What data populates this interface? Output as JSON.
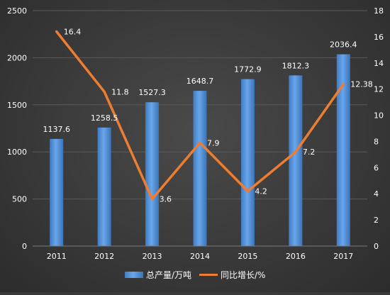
{
  "chart_data": {
    "type": "bar+line",
    "categories": [
      "2011",
      "2012",
      "2013",
      "2014",
      "2015",
      "2016",
      "2017"
    ],
    "series": [
      {
        "name": "总产量/万吨",
        "type": "bar",
        "axis": "left",
        "color": "#4f8fd8",
        "values": [
          1137.6,
          1258.5,
          1527.3,
          1648.7,
          1772.9,
          1812.3,
          2036.4
        ],
        "labels": [
          "1137.6",
          "1258.5",
          "1527.3",
          "1648.7",
          "1772.9",
          "1812.3",
          "2036.4"
        ]
      },
      {
        "name": "同比增长/%",
        "type": "line",
        "axis": "right",
        "color": "#ed7d31",
        "values": [
          16.4,
          11.8,
          3.6,
          7.9,
          4.2,
          7.2,
          12.38
        ],
        "labels": [
          "16.4",
          "11.8",
          "3.6",
          "7.9",
          "4.2",
          "7.2",
          "12.38"
        ]
      }
    ],
    "y_left": {
      "lim": [
        0,
        2500
      ],
      "ticks": [
        "0",
        "500",
        "1000",
        "1500",
        "2000",
        "2500"
      ]
    },
    "y_right": {
      "lim": [
        0,
        18
      ],
      "ticks": [
        "0",
        "2",
        "4",
        "6",
        "8",
        "10",
        "12",
        "14",
        "16",
        "18"
      ]
    },
    "grid": true,
    "legend": "bottom"
  }
}
